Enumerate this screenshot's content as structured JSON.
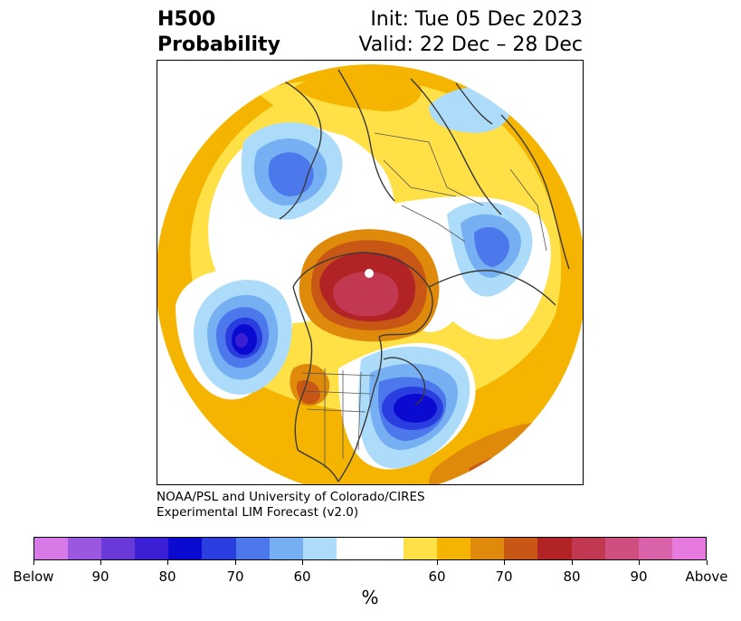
{
  "header": {
    "title_line1": "H500",
    "title_line2": "Probability",
    "init": "Init: Tue 05 Dec 2023",
    "valid": "Valid: 22 Dec – 28 Dec"
  },
  "credit": {
    "line1": "NOAA/PSL and University of Colorado/CIRES",
    "line2": "Experimental LIM Forecast (v2.0)"
  },
  "colorbar": {
    "unit": "%",
    "colors": [
      "#d77ae8",
      "#9b57e0",
      "#6a3ad8",
      "#3a1fd4",
      "#0a0ad0",
      "#2a3ee0",
      "#4c78ec",
      "#76b0f2",
      "#acdcfa",
      "#ffffff",
      "#ffffff",
      "#ffe046",
      "#f4b400",
      "#e08a0c",
      "#c85614",
      "#b22326",
      "#c23850",
      "#cf5080",
      "#da62a8",
      "#e77adf"
    ],
    "ticks": [
      "Below",
      "90",
      "80",
      "70",
      "60",
      "60",
      "70",
      "80",
      "90",
      "Above"
    ]
  }
}
